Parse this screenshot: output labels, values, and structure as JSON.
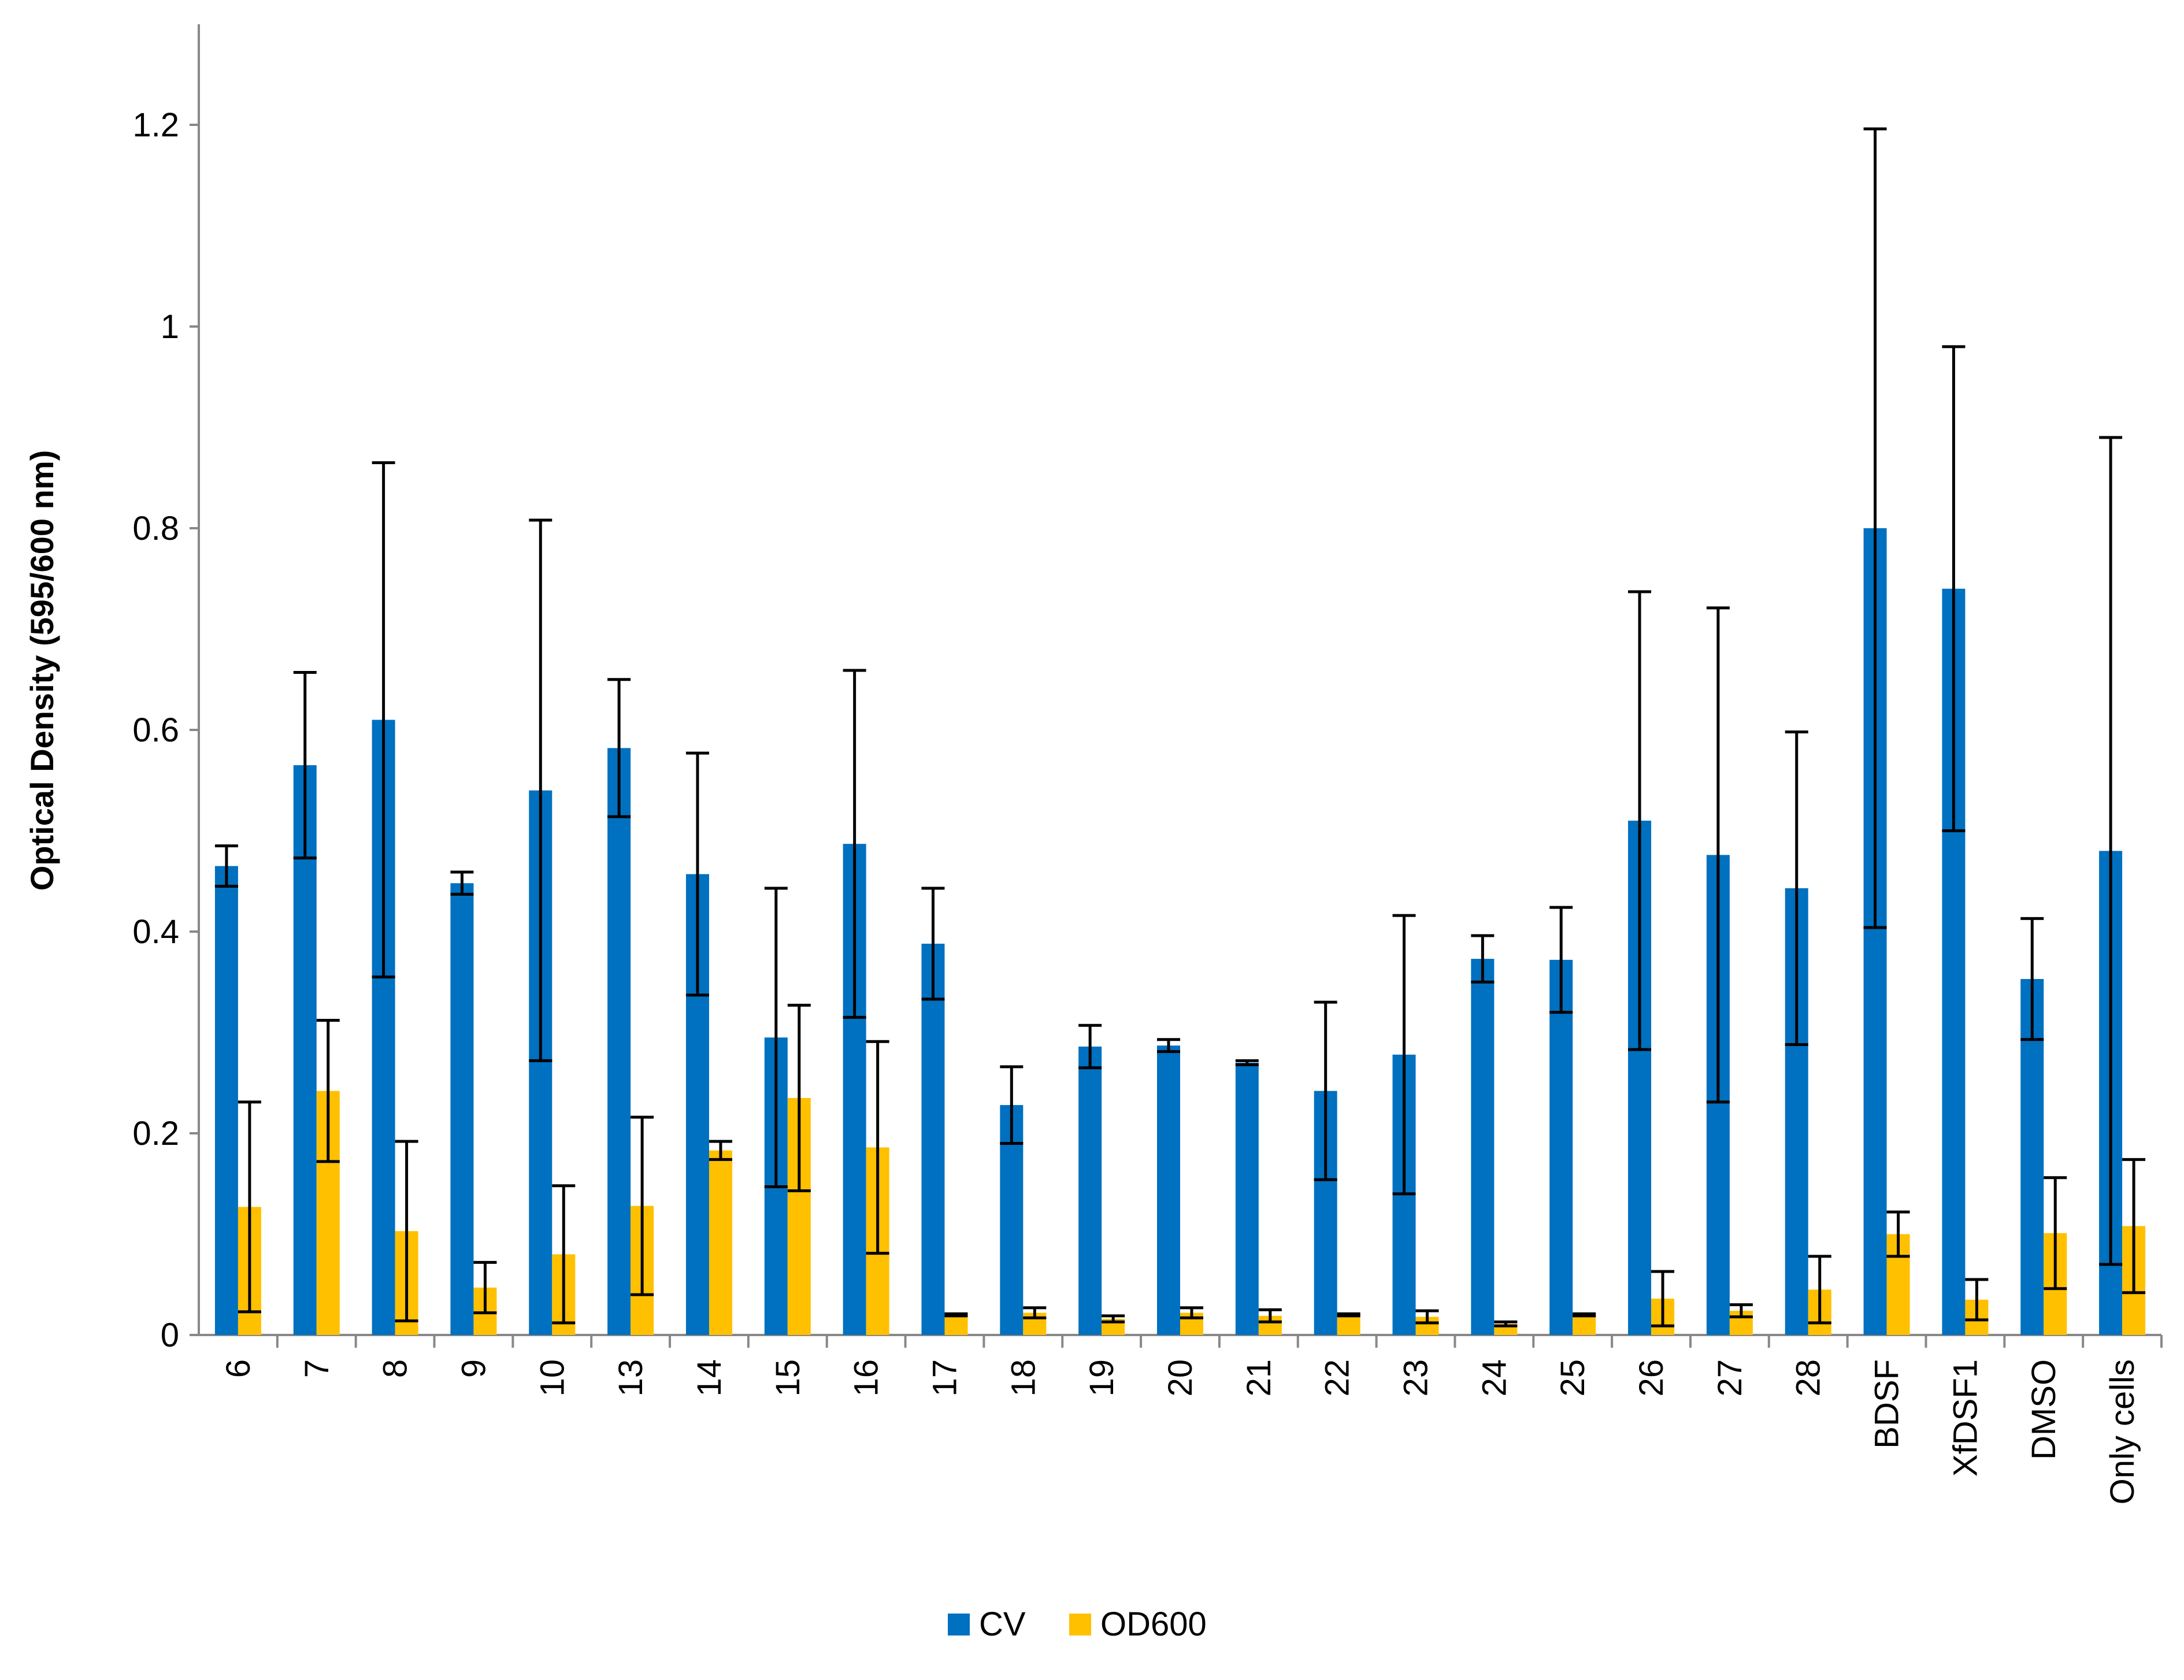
{
  "chart_data": {
    "type": "bar",
    "title": "",
    "xlabel": "",
    "ylabel": "Optical Density (595/600 nm)",
    "ylim": [
      0,
      1.3
    ],
    "yticks": [
      {
        "value": 0,
        "label": "0"
      },
      {
        "value": 0.2,
        "label": "0.2"
      },
      {
        "value": 0.4,
        "label": "0.4"
      },
      {
        "value": 0.6,
        "label": "0.6"
      },
      {
        "value": 0.8,
        "label": "0.8"
      },
      {
        "value": 1.0,
        "label": "1"
      },
      {
        "value": 1.2,
        "label": "1.2"
      }
    ],
    "grid": false,
    "legend_position": "bottom",
    "categories": [
      "6",
      "7",
      "8",
      "9",
      "10",
      "13",
      "14",
      "15",
      "16",
      "17",
      "18",
      "19",
      "20",
      "21",
      "22",
      "23",
      "24",
      "25",
      "26",
      "27",
      "28",
      "BDSF",
      "XfDSF1",
      "DMSO",
      "Only  cells"
    ],
    "series": [
      {
        "name": "CV",
        "color": "#0070C0",
        "values": [
          0.465,
          0.565,
          0.61,
          0.448,
          0.54,
          0.582,
          0.457,
          0.295,
          0.487,
          0.388,
          0.228,
          0.286,
          0.287,
          0.27,
          0.242,
          0.278,
          0.373,
          0.372,
          0.51,
          0.476,
          0.443,
          0.8,
          0.74,
          0.353,
          0.48
        ],
        "errors": [
          0.02,
          0.092,
          0.255,
          0.011,
          0.268,
          0.068,
          0.12,
          0.148,
          0.172,
          0.055,
          0.038,
          0.021,
          0.006,
          0.002,
          0.088,
          0.138,
          0.023,
          0.052,
          0.227,
          0.245,
          0.155,
          0.396,
          0.24,
          0.06,
          0.41
        ]
      },
      {
        "name": "OD600",
        "color": "#FFC000",
        "values": [
          0.127,
          0.242,
          0.103,
          0.047,
          0.08,
          0.128,
          0.183,
          0.235,
          0.186,
          0.02,
          0.022,
          0.016,
          0.022,
          0.019,
          0.02,
          0.018,
          0.011,
          0.02,
          0.036,
          0.024,
          0.045,
          0.1,
          0.035,
          0.101,
          0.108
        ]
      }
    ]
  },
  "od600_errors": [
    0.104,
    0.07,
    0.089,
    0.025,
    0.068,
    0.088,
    0.009,
    0.092,
    0.105,
    0.001,
    0.005,
    0.003,
    0.005,
    0.006,
    0.001,
    0.006,
    0.002,
    0.001,
    0.027,
    0.006,
    0.033,
    0.022,
    0.02,
    0.055,
    0.066
  ]
}
